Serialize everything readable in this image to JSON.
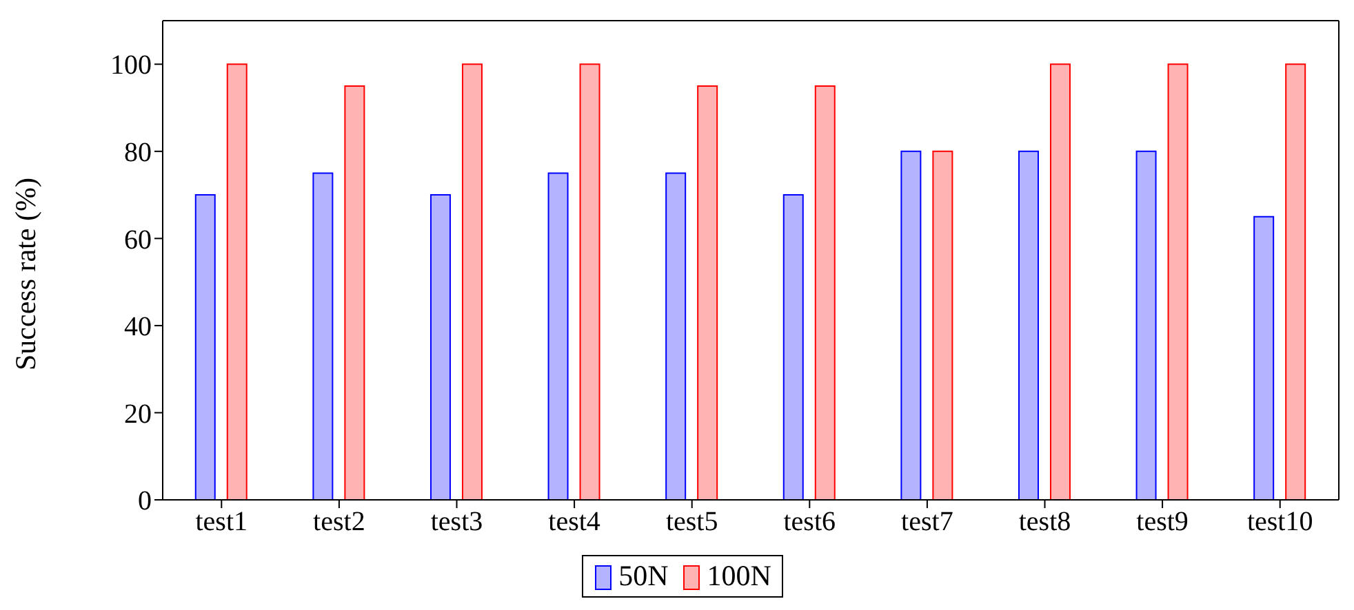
{
  "chart_data": {
    "type": "bar",
    "ylabel": "Success rate (%)",
    "categories": [
      "test1",
      "test2",
      "test3",
      "test4",
      "test5",
      "test6",
      "test7",
      "test8",
      "test9",
      "test10"
    ],
    "series": [
      {
        "name": "50N",
        "color": "#b3b3ff",
        "values": [
          70,
          75,
          70,
          75,
          75,
          70,
          80,
          80,
          80,
          65
        ]
      },
      {
        "name": "100N",
        "color": "#ffb3b3",
        "values": [
          100,
          95,
          100,
          100,
          95,
          95,
          80,
          100,
          100,
          100
        ]
      }
    ],
    "ylim": [
      0,
      110
    ],
    "yticks": [
      0,
      20,
      40,
      60,
      80,
      100
    ],
    "grid": false,
    "legend": "bottom"
  }
}
